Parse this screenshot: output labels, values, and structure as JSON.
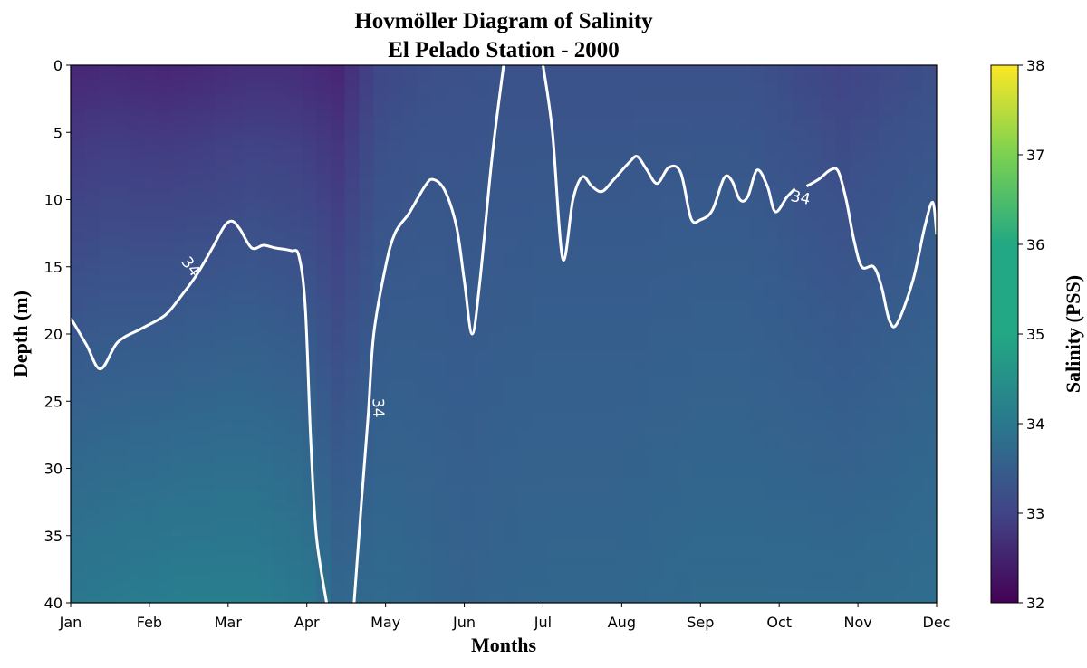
{
  "chart_data": {
    "type": "heatmap",
    "title": "Hovmöller Diagram of Salinity",
    "subtitle": "El Pelado Station - 2000",
    "xlabel": "Months",
    "ylabel": "Depth (m)",
    "colorbar_label": "Salinity (PSS)",
    "colormap": "viridis",
    "x_categories": [
      "Jan",
      "Feb",
      "Mar",
      "Apr",
      "May",
      "Jun",
      "Jul",
      "Aug",
      "Sep",
      "Oct",
      "Nov",
      "Dec"
    ],
    "xlim": [
      0,
      11
    ],
    "ylim": [
      40,
      0
    ],
    "y_ticks": [
      0,
      5,
      10,
      15,
      20,
      25,
      30,
      35,
      40
    ],
    "colorbar_range": [
      32,
      38
    ],
    "colorbar_ticks": [
      32,
      33,
      34,
      35,
      36,
      37,
      38
    ],
    "surface_salinity": [
      [
        0,
        32.8
      ],
      [
        0.5,
        32.9
      ],
      [
        1.2,
        32.8
      ],
      [
        1.8,
        32.9
      ],
      [
        2.2,
        33.0
      ],
      [
        2.8,
        33.0
      ],
      [
        3.4,
        32.8
      ],
      [
        3.9,
        33.6
      ],
      [
        4.5,
        33.8
      ],
      [
        5.5,
        33.9
      ],
      [
        6.5,
        33.9
      ],
      [
        7.5,
        33.9
      ],
      [
        8.5,
        33.9
      ],
      [
        9.2,
        33.7
      ],
      [
        9.8,
        33.5
      ],
      [
        10.5,
        33.7
      ],
      [
        11,
        33.8
      ]
    ],
    "deep_salinity": [
      [
        0,
        35.0
      ],
      [
        1.5,
        35.2
      ],
      [
        2.3,
        35.2
      ],
      [
        3.0,
        35.0
      ],
      [
        3.4,
        34.5
      ],
      [
        4.0,
        34.6
      ],
      [
        5.0,
        34.4
      ],
      [
        6.0,
        34.5
      ],
      [
        7.0,
        34.5
      ],
      [
        8.0,
        34.6
      ],
      [
        9.0,
        34.6
      ],
      [
        10.0,
        34.6
      ],
      [
        11,
        34.7
      ]
    ],
    "contour_34": {
      "level": 34,
      "label": "34",
      "depths": [
        [
          0,
          18.8
        ],
        [
          0.2,
          20.8
        ],
        [
          0.38,
          22.6
        ],
        [
          0.6,
          20.6
        ],
        [
          0.9,
          19.6
        ],
        [
          1.2,
          18.6
        ],
        [
          1.4,
          17.2
        ],
        [
          1.6,
          15.6
        ],
        [
          1.8,
          13.6
        ],
        [
          1.95,
          12.0
        ],
        [
          2.05,
          11.6
        ],
        [
          2.15,
          12.2
        ],
        [
          2.3,
          13.6
        ],
        [
          2.45,
          13.4
        ],
        [
          2.6,
          13.6
        ],
        [
          2.8,
          13.8
        ],
        [
          2.9,
          14.2
        ],
        [
          2.98,
          18.0
        ],
        [
          3.05,
          28.0
        ],
        [
          3.12,
          35.0
        ],
        [
          3.25,
          40.0
        ]
      ],
      "depths_b": [
        [
          3.6,
          40.0
        ],
        [
          3.7,
          32.0
        ],
        [
          3.78,
          26.0
        ],
        [
          3.85,
          20.0
        ],
        [
          4.0,
          15.0
        ],
        [
          4.12,
          12.5
        ],
        [
          4.3,
          11.0
        ],
        [
          4.5,
          9.0
        ],
        [
          4.6,
          8.5
        ],
        [
          4.75,
          9.3
        ],
        [
          4.9,
          12.0
        ],
        [
          5.0,
          16.0
        ],
        [
          5.1,
          20.0
        ],
        [
          5.2,
          16.0
        ],
        [
          5.35,
          7.0
        ],
        [
          5.5,
          0.0
        ]
      ],
      "depths_c": [
        [
          6.0,
          0.0
        ],
        [
          6.12,
          5.0
        ],
        [
          6.25,
          14.4
        ],
        [
          6.38,
          10.0
        ],
        [
          6.5,
          8.3
        ],
        [
          6.62,
          9.0
        ],
        [
          6.75,
          9.4
        ],
        [
          6.9,
          8.5
        ],
        [
          7.1,
          7.2
        ],
        [
          7.2,
          6.8
        ],
        [
          7.32,
          7.8
        ],
        [
          7.45,
          8.8
        ],
        [
          7.6,
          7.6
        ],
        [
          7.75,
          8.0
        ],
        [
          7.88,
          11.4
        ],
        [
          8.0,
          11.5
        ],
        [
          8.15,
          10.8
        ],
        [
          8.3,
          8.4
        ],
        [
          8.4,
          8.6
        ],
        [
          8.5,
          10.0
        ],
        [
          8.6,
          9.8
        ],
        [
          8.72,
          7.8
        ],
        [
          8.85,
          9.0
        ],
        [
          8.95,
          10.9
        ],
        [
          9.1,
          9.8
        ],
        [
          9.2,
          9.2
        ]
      ],
      "depths_d": [
        [
          9.35,
          9.0
        ],
        [
          9.5,
          8.5
        ],
        [
          9.65,
          7.8
        ],
        [
          9.75,
          7.9
        ],
        [
          9.85,
          10.0
        ],
        [
          9.95,
          13.0
        ],
        [
          10.05,
          15.0
        ],
        [
          10.2,
          15.0
        ],
        [
          10.3,
          16.5
        ],
        [
          10.4,
          19.0
        ],
        [
          10.5,
          19.2
        ],
        [
          10.7,
          16.0
        ],
        [
          10.85,
          12.0
        ],
        [
          10.95,
          10.2
        ],
        [
          11.0,
          12.6
        ]
      ]
    }
  }
}
